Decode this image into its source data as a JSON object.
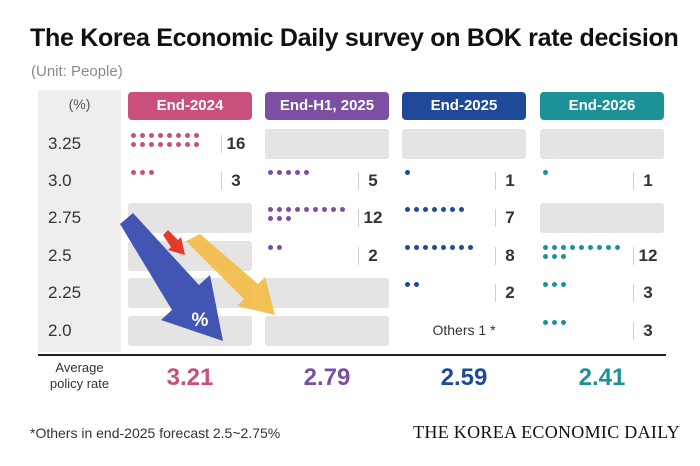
{
  "title": "The Korea Economic Daily survey on BOK rate decision",
  "unit": "(Unit: People)",
  "rate_header": "(%)",
  "average_label_line1": "Average",
  "average_label_line2": "policy rate",
  "footnote": "*Others in end-2025 forecast 2.5~2.75%",
  "brand": "THE KOREA ECONOMIC DAILY",
  "arrow_symbol": "%",
  "chart_data": {
    "type": "table",
    "rates": [
      "3.25",
      "3.0",
      "2.75",
      "2.5",
      "2.25",
      "2.0"
    ],
    "columns": [
      {
        "name": "End-2024",
        "color": "#c9507c",
        "counts": [
          16,
          3,
          null,
          null,
          null,
          null
        ],
        "average": "3.21"
      },
      {
        "name": "End-H1, 2025",
        "color": "#7d4fa3",
        "counts": [
          null,
          5,
          12,
          2,
          null,
          null
        ],
        "average": "2.79"
      },
      {
        "name": "End-2025",
        "color": "#1f4a9a",
        "counts": [
          null,
          1,
          7,
          8,
          2,
          null
        ],
        "average": "2.59",
        "others_note": "Others 1 *"
      },
      {
        "name": "End-2026",
        "color": "#1a9298",
        "counts": [
          null,
          1,
          null,
          12,
          3,
          3
        ],
        "average": "2.41"
      }
    ]
  }
}
